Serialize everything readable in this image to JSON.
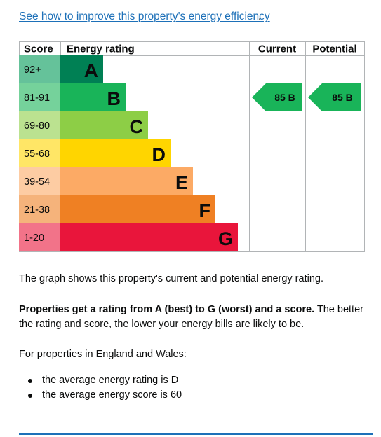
{
  "link": {
    "text": "See how to improve this property's energy efficiency",
    "suffix": "."
  },
  "chart": {
    "headers": {
      "score": "Score",
      "rating": "Energy rating",
      "current": "Current",
      "potential": "Potential"
    },
    "bands": [
      {
        "letter": "A",
        "range": "92+",
        "color": "#008054",
        "score_color": "#65c29a"
      },
      {
        "letter": "B",
        "range": "81-91",
        "color": "#19b459",
        "score_color": "#75d29b"
      },
      {
        "letter": "C",
        "range": "69-80",
        "color": "#8dce46",
        "score_color": "#bbe290"
      },
      {
        "letter": "D",
        "range": "55-68",
        "color": "#ffd500",
        "score_color": "#ffe666"
      },
      {
        "letter": "E",
        "range": "39-54",
        "color": "#fcaa65",
        "score_color": "#fdcca3"
      },
      {
        "letter": "F",
        "range": "21-38",
        "color": "#ef8023",
        "score_color": "#f5b37b"
      },
      {
        "letter": "G",
        "range": "1-20",
        "color": "#e9153b",
        "score_color": "#f27389"
      }
    ],
    "current": {
      "score": 85,
      "letter": "B",
      "label": "85 B",
      "color": "#19b459"
    },
    "potential": {
      "score": 85,
      "letter": "B",
      "label": "85 B",
      "color": "#19b459"
    }
  },
  "text": {
    "graph_desc": "The graph shows this property's current and potential energy rating.",
    "rating_bold": "Properties get a rating from A (best) to G (worst) and a score.",
    "rating_rest": " The better the rating and score, the lower your energy bills are likely to be.",
    "england_wales": "For properties in England and Wales:",
    "bullets": [
      "the average energy rating is D",
      "the average energy score is 60"
    ]
  }
}
